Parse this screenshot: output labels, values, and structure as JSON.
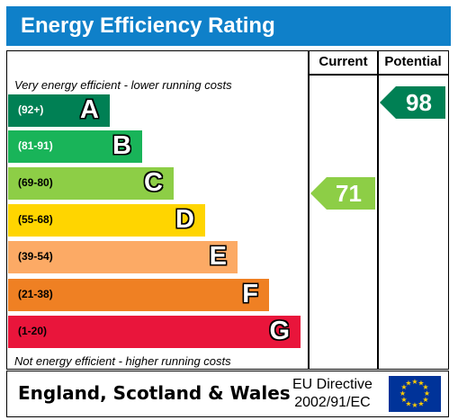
{
  "header": {
    "title": "Energy Efficiency Rating"
  },
  "columns": {
    "current": "Current",
    "potential": "Potential"
  },
  "notes": {
    "top": "Very energy efficient - lower running costs",
    "bottom": "Not energy efficient - higher running costs"
  },
  "bands": [
    {
      "letter": "A",
      "range": "(92+)",
      "color": "#008054"
    },
    {
      "letter": "B",
      "range": "(81-91)",
      "color": "#19b459"
    },
    {
      "letter": "C",
      "range": "(69-80)",
      "color": "#8dce46"
    },
    {
      "letter": "D",
      "range": "(55-68)",
      "color": "#ffd500"
    },
    {
      "letter": "E",
      "range": "(39-54)",
      "color": "#fcaa65"
    },
    {
      "letter": "F",
      "range": "(21-38)",
      "color": "#ef8023"
    },
    {
      "letter": "G",
      "range": "(1-20)",
      "color": "#e9153b"
    }
  ],
  "ratings": {
    "current": {
      "value": "71",
      "band": "C",
      "color": "#8dce46"
    },
    "potential": {
      "value": "98",
      "band": "A",
      "color": "#008054"
    }
  },
  "footer": {
    "country": "England, Scotland & Wales",
    "directive_line1": "EU Directive",
    "directive_line2": "2002/91/EC"
  }
}
